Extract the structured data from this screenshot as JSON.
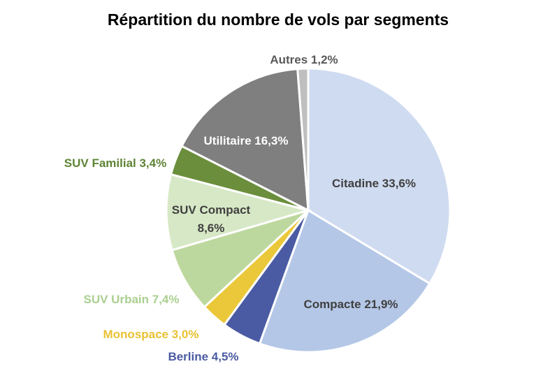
{
  "chart_data": {
    "type": "pie",
    "title": "Répartition du nombre de vols par segments",
    "start": "top",
    "direction": "clockwise",
    "slices": [
      {
        "label": "Citadine",
        "value": 33.6,
        "display": "Citadine 33,6%",
        "color": "#CFDBF0",
        "label_color": "#404040"
      },
      {
        "label": "Compacte",
        "value": 21.9,
        "display": "Compacte 21,9%",
        "color": "#B4C7E7",
        "label_color": "#404040"
      },
      {
        "label": "Berline",
        "value": 4.5,
        "display": "Berline 4,5%",
        "color": "#4A5BA3",
        "label_color": "#4A5BA3"
      },
      {
        "label": "Monospace",
        "value": 3.0,
        "display": "Monospace 3,0%",
        "color": "#EBC83A",
        "label_color": "#E8C234"
      },
      {
        "label": "SUV Urbain",
        "value": 7.4,
        "display": "SUV Urbain 7,4%",
        "color": "#BDD89E",
        "label_color": "#AACF90"
      },
      {
        "label": "SUV Compact",
        "value": 8.6,
        "display": "SUV Compact\n8,6%",
        "color": "#D7E8C6",
        "label_color": "#404040"
      },
      {
        "label": "SUV Familial",
        "value": 3.4,
        "display": "SUV Familial 3,4%",
        "color": "#6B8E3C",
        "label_color": "#5E8435"
      },
      {
        "label": "Utilitaire",
        "value": 16.3,
        "display": "Utilitaire 16,3%",
        "color": "#7F7F7F",
        "label_color": "#FFFFFF"
      },
      {
        "label": "Autres",
        "value": 1.2,
        "display": "Autres 1,2%",
        "color": "#BFBFBF",
        "label_color": "#595959"
      }
    ]
  }
}
